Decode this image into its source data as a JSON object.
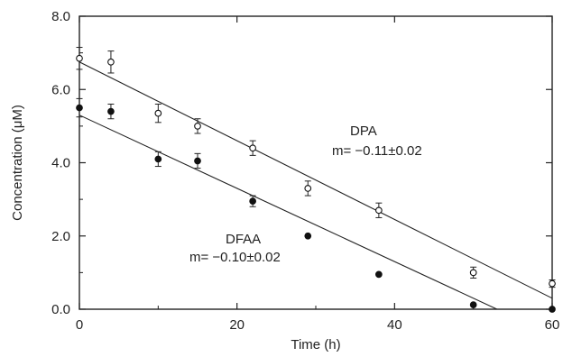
{
  "chart_data": {
    "type": "scatter",
    "xlabel": "Time (h)",
    "ylabel": "Concentration (μM)",
    "xlim": [
      0,
      60
    ],
    "ylim": [
      0,
      8
    ],
    "x_ticks": [
      "0",
      "20",
      "40",
      "60"
    ],
    "y_ticks": [
      "0.0",
      "2.0",
      "4.0",
      "6.0",
      "8.0"
    ],
    "grid": false,
    "series": [
      {
        "name": "DPA",
        "marker": "open-circle",
        "x": [
          0,
          4,
          10,
          15,
          22,
          29,
          38,
          50,
          60
        ],
        "y": [
          6.85,
          6.75,
          5.35,
          5.0,
          4.4,
          3.3,
          2.7,
          1.0,
          0.7
        ],
        "err": [
          0.3,
          0.3,
          0.25,
          0.2,
          0.2,
          0.2,
          0.2,
          0.15,
          0.1
        ],
        "fit": {
          "x": [
            0,
            60
          ],
          "y": [
            6.75,
            0.3
          ]
        },
        "annotation": {
          "name": "DPA",
          "slope": "m= −0.11±0.02"
        }
      },
      {
        "name": "DFAA",
        "marker": "filled-circle",
        "x": [
          0,
          4,
          10,
          15,
          22,
          29,
          38,
          50,
          60
        ],
        "y": [
          5.5,
          5.4,
          4.1,
          4.05,
          2.95,
          2.0,
          0.95,
          0.12,
          0.0
        ],
        "err": [
          0.25,
          0.2,
          0.2,
          0.2,
          0.15,
          0.0,
          0.0,
          0.0,
          0.0
        ],
        "fit": {
          "x": [
            0,
            53
          ],
          "y": [
            5.3,
            0.0
          ]
        },
        "annotation": {
          "name": "DFAA",
          "slope": "m= −0.10±0.02"
        }
      }
    ]
  }
}
